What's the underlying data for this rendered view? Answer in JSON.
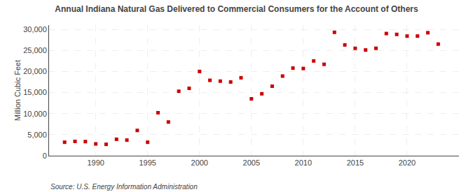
{
  "chart_data": {
    "type": "scatter",
    "title": "Annual Indiana Natural Gas Delivered to Commercial Consumers for the Account of Others",
    "ylabel": "Million Cubic Feet",
    "annotations": [
      "Source: U.S. Energy Information Administration"
    ],
    "x": [
      1987,
      1988,
      1989,
      1990,
      1991,
      1992,
      1993,
      1994,
      1995,
      1996,
      1997,
      1998,
      1999,
      2000,
      2001,
      2002,
      2003,
      2004,
      2005,
      2006,
      2007,
      2008,
      2009,
      2010,
      2011,
      2012,
      2013,
      2014,
      2015,
      2016,
      2017,
      2018,
      2019,
      2020,
      2021,
      2022,
      2023
    ],
    "values": [
      3200,
      3400,
      3350,
      2800,
      2700,
      3900,
      3700,
      6000,
      3200,
      10200,
      8000,
      15300,
      16000,
      20000,
      17900,
      17700,
      17500,
      18500,
      13500,
      14700,
      16500,
      18900,
      20800,
      20700,
      22500,
      21700,
      29300,
      26300,
      25500,
      25100,
      25500,
      29000,
      28800,
      28400,
      28400,
      29200,
      26500
    ],
    "color": "#cc0000",
    "marker": "square",
    "xlim": [
      1985.5,
      2025
    ],
    "xticks": [
      1990,
      1995,
      2000,
      2005,
      2010,
      2015,
      2020
    ],
    "ylim": [
      0,
      31000
    ],
    "yticks": [
      0,
      {
        "value": 5000,
        "label": "5,000"
      },
      {
        "value": 10000,
        "label": "10,000"
      },
      {
        "value": 15000,
        "label": "15,000"
      },
      {
        "value": 20000,
        "label": "20,000"
      },
      {
        "value": 25000,
        "label": "25,000"
      },
      {
        "value": 30000,
        "label": "30,000"
      }
    ],
    "grid": true
  }
}
